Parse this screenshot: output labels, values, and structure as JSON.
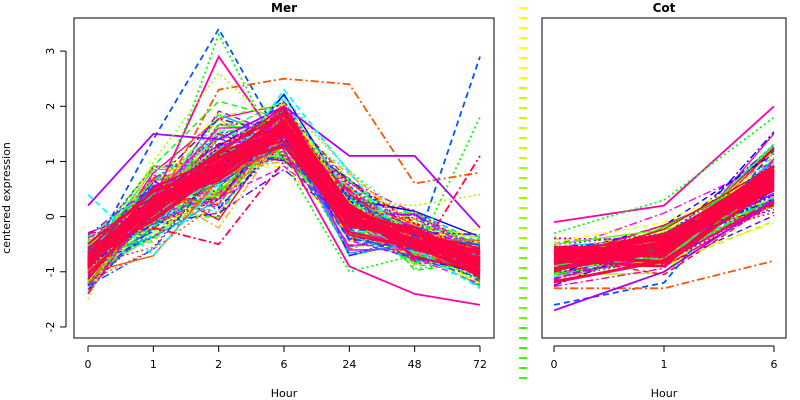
{
  "ylabel": "centered expression",
  "legend_colors": [
    "#ffff00",
    "#c8ff00",
    "#99ff00",
    "#66ff00",
    "#33ff00"
  ],
  "palette": [
    "#ff0000",
    "#ff0055",
    "#ff00aa",
    "#ff00ff",
    "#aa00ff",
    "#5500ff",
    "#0000ff",
    "#0055ff",
    "#00aaff",
    "#00ffff",
    "#00ffaa",
    "#00ff55",
    "#00ff00",
    "#55ff00",
    "#aaff00",
    "#ffff00",
    "#ffaa00",
    "#ff5500"
  ],
  "highlight_color": "#ff0044",
  "chart_data": [
    {
      "type": "line",
      "title": "Mer",
      "xlabel": "Hour",
      "ylabel": "centered expression",
      "categories": [
        "0",
        "1",
        "2",
        "6",
        "24",
        "48",
        "72"
      ],
      "ylim": [
        -2.2,
        3.6
      ],
      "yticks": [
        -2,
        -1,
        0,
        1,
        2,
        3
      ],
      "typical_values": [
        -0.8,
        0.2,
        0.9,
        1.6,
        0.0,
        -0.4,
        -0.8
      ],
      "series": [
        {
          "values": [
            -1.4,
            0.3,
            2.9,
            1.2,
            -0.9,
            -1.4,
            -1.6
          ]
        },
        {
          "values": [
            -0.8,
            1.4,
            3.4,
            1.3,
            -0.4,
            -0.6,
            2.9
          ]
        },
        {
          "values": [
            -1.2,
            0.0,
            3.3,
            1.0,
            -1.0,
            -0.7,
            1.8
          ]
        },
        {
          "values": [
            -1.0,
            0.1,
            2.3,
            2.5,
            2.4,
            0.6,
            0.8
          ]
        },
        {
          "values": [
            0.2,
            1.5,
            1.4,
            2.0,
            1.1,
            1.1,
            -0.2
          ]
        },
        {
          "values": [
            0.4,
            -0.7,
            0.6,
            2.3,
            0.8,
            -0.6,
            -1.3
          ]
        },
        {
          "values": [
            -1.5,
            1.0,
            2.6,
            1.5,
            0.3,
            0.2,
            0.4
          ]
        },
        {
          "values": [
            -0.3,
            -0.2,
            -0.5,
            1.0,
            0.5,
            -0.8,
            1.1
          ]
        }
      ]
    },
    {
      "type": "line",
      "title": "Cot",
      "xlabel": "Hour",
      "categories": [
        "0",
        "1",
        "6"
      ],
      "ylim": [
        -2.2,
        3.6
      ],
      "typical_values": [
        -0.8,
        -0.6,
        0.7
      ],
      "series": [
        {
          "values": [
            -0.1,
            0.2,
            2.0
          ]
        },
        {
          "values": [
            -1.6,
            -1.2,
            1.2
          ]
        },
        {
          "values": [
            -0.3,
            0.3,
            1.8
          ]
        },
        {
          "values": [
            -1.3,
            -1.3,
            -0.8
          ]
        },
        {
          "values": [
            -1.7,
            -1.0,
            0.3
          ]
        }
      ]
    }
  ]
}
